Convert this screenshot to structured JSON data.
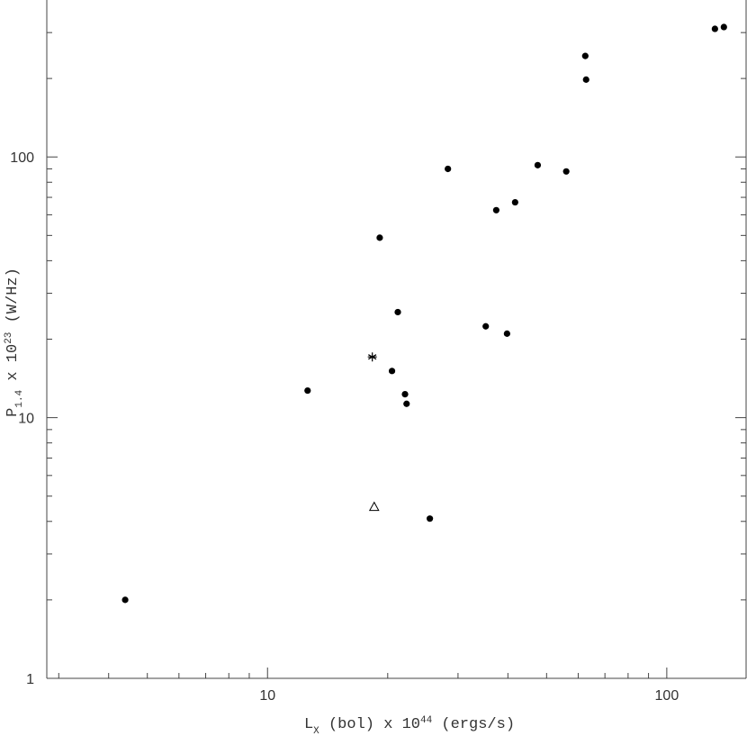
{
  "chart_data": {
    "type": "scatter",
    "xlabel": [
      {
        "text": "L"
      },
      {
        "text": "X",
        "sub": true
      },
      {
        "text": " (bol) x 10"
      },
      {
        "text": "44",
        "sup": true
      },
      {
        "text": " (ergs/s)"
      }
    ],
    "ylabel": [
      {
        "text": "P"
      },
      {
        "text": "1.4",
        "sub": true
      },
      {
        "text": " x 10"
      },
      {
        "text": "23",
        "sup": true
      },
      {
        "text": " (W/Hz)"
      }
    ],
    "xlog": true,
    "ylog": true,
    "xlim": [
      2.8,
      158
    ],
    "ylim": [
      1,
      400
    ],
    "xticks": [
      10,
      100
    ],
    "yticks": [
      1,
      10,
      100
    ],
    "xminor": [
      3,
      4,
      5,
      6,
      7,
      8,
      9,
      20,
      30,
      40,
      50,
      60,
      70,
      80,
      90
    ],
    "yminor": [
      2,
      3,
      4,
      5,
      6,
      7,
      8,
      9,
      20,
      30,
      40,
      50,
      60,
      70,
      80,
      90,
      200,
      300
    ],
    "series": [
      {
        "marker": "circle",
        "color": "#000000",
        "x": [
          4.4,
          12.6,
          19.1,
          21.2,
          20.5,
          22.1,
          22.3,
          25.5,
          28.3,
          35.2,
          37.4,
          39.8,
          41.7,
          47.5,
          56.0,
          62.5,
          62.8,
          132,
          139
        ],
        "y": [
          2.0,
          12.7,
          49,
          25.4,
          15.1,
          12.3,
          11.3,
          4.1,
          90,
          22.4,
          62.5,
          21.0,
          67,
          93,
          88,
          244,
          198,
          310,
          315
        ]
      },
      {
        "marker": "star",
        "color": "#000000",
        "x": [
          18.3
        ],
        "y": [
          17.1
        ]
      },
      {
        "marker": "triangle",
        "color": "#000000",
        "x": [
          18.5
        ],
        "y": [
          4.55
        ]
      }
    ]
  }
}
